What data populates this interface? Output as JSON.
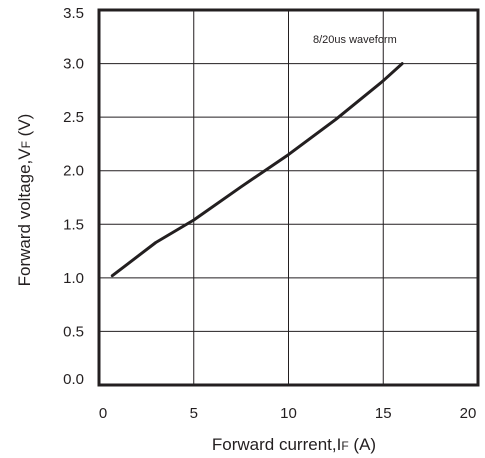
{
  "chart_data": {
    "type": "line",
    "title": "",
    "annotation": "8/20us waveform",
    "xlabel": {
      "main": "Forward current,I",
      "sub": "F",
      "unit": " (A)"
    },
    "ylabel": {
      "main": "Forward voltage,V",
      "sub": "F",
      "unit": " (V)"
    },
    "xlim": [
      0,
      20
    ],
    "ylim": [
      0,
      3.5
    ],
    "xticks": [
      "0",
      "5",
      "10",
      "15",
      "20"
    ],
    "yticks": [
      "0.0",
      "0.5",
      "1.0",
      "1.5",
      "2.0",
      "2.5",
      "3.0",
      "3.5"
    ],
    "grid": true,
    "line_color": "#231f20",
    "series": [
      {
        "x": [
          0.7,
          3,
          5,
          7.5,
          10,
          12.5,
          15,
          16
        ],
        "y": [
          1.02,
          1.33,
          1.54,
          1.85,
          2.15,
          2.48,
          2.84,
          3.0
        ]
      }
    ]
  }
}
